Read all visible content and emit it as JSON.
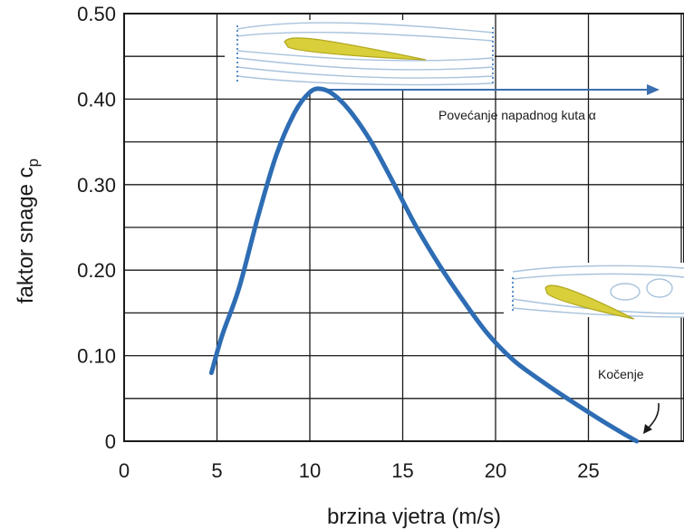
{
  "chart_data": {
    "type": "line",
    "xlabel": "brzina vjetra (m/s)",
    "ylabel": "faktor snage c",
    "ylabel_subscript": "p",
    "xlim": [
      0,
      30
    ],
    "ylim": [
      0,
      0.5
    ],
    "x_ticks": [
      0,
      5,
      10,
      15,
      20,
      25
    ],
    "x_tick_labels": [
      "0",
      "5",
      "10",
      "15",
      "20",
      "25"
    ],
    "y_ticks": [
      0,
      0.1,
      0.2,
      0.3,
      0.4,
      0.5
    ],
    "y_tick_labels": [
      "0",
      "0.10",
      "0.20",
      "0.30",
      "0.40",
      "0.50"
    ],
    "grid": true,
    "series": [
      {
        "color": "#2e6db4",
        "x": [
          4.7,
          5.3,
          6.2,
          7.2,
          8.2,
          9.2,
          10.0,
          10.6,
          11.3,
          12.2,
          13.3,
          14.5,
          15.7,
          17.0,
          18.3,
          19.6,
          21.0,
          22.5,
          24.0,
          25.5,
          26.8,
          27.6
        ],
        "y": [
          0.08,
          0.125,
          0.18,
          0.262,
          0.335,
          0.385,
          0.408,
          0.412,
          0.405,
          0.385,
          0.35,
          0.302,
          0.252,
          0.205,
          0.163,
          0.125,
          0.094,
          0.07,
          0.048,
          0.027,
          0.01,
          0.0
        ]
      }
    ],
    "annotations": [
      {
        "text": "Povećanje napadnog kuta α",
        "x": 20.2,
        "y": 0.375
      },
      {
        "text": "Kočenje",
        "x": 25.8,
        "y": 0.085
      }
    ]
  },
  "colors": {
    "curve": "#2e6db4",
    "arrow": "#3a6fb0",
    "airfoil": "#d8cf3a",
    "streamline": "#a9c3dc",
    "grid": "#1a1a1a"
  }
}
